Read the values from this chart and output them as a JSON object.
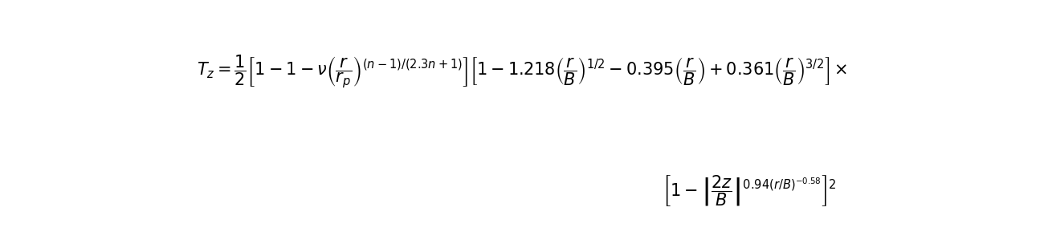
{
  "formula_line1": "$T_z = \\dfrac{1}{2}\\left[1-1-\\nu\\left(\\dfrac{r}{r_p}\\right)^{(n-1)/(2.3n+1)}\\right]\\left[1-1.218\\left(\\dfrac{r}{B}\\right)^{1/2} - 0.395\\left(\\dfrac{r}{B}\\right) + 0.361\\left(\\dfrac{r}{B}\\right)^{3/2}\\right]\\times$",
  "formula_line2": "$\\left[1-\\left|\\dfrac{2z}{B}\\right|^{0.94(r/B)^{-0.58}}\\right]^{2}$",
  "bg_color": "#ffffff",
  "text_color": "#000000",
  "font_size": 15
}
